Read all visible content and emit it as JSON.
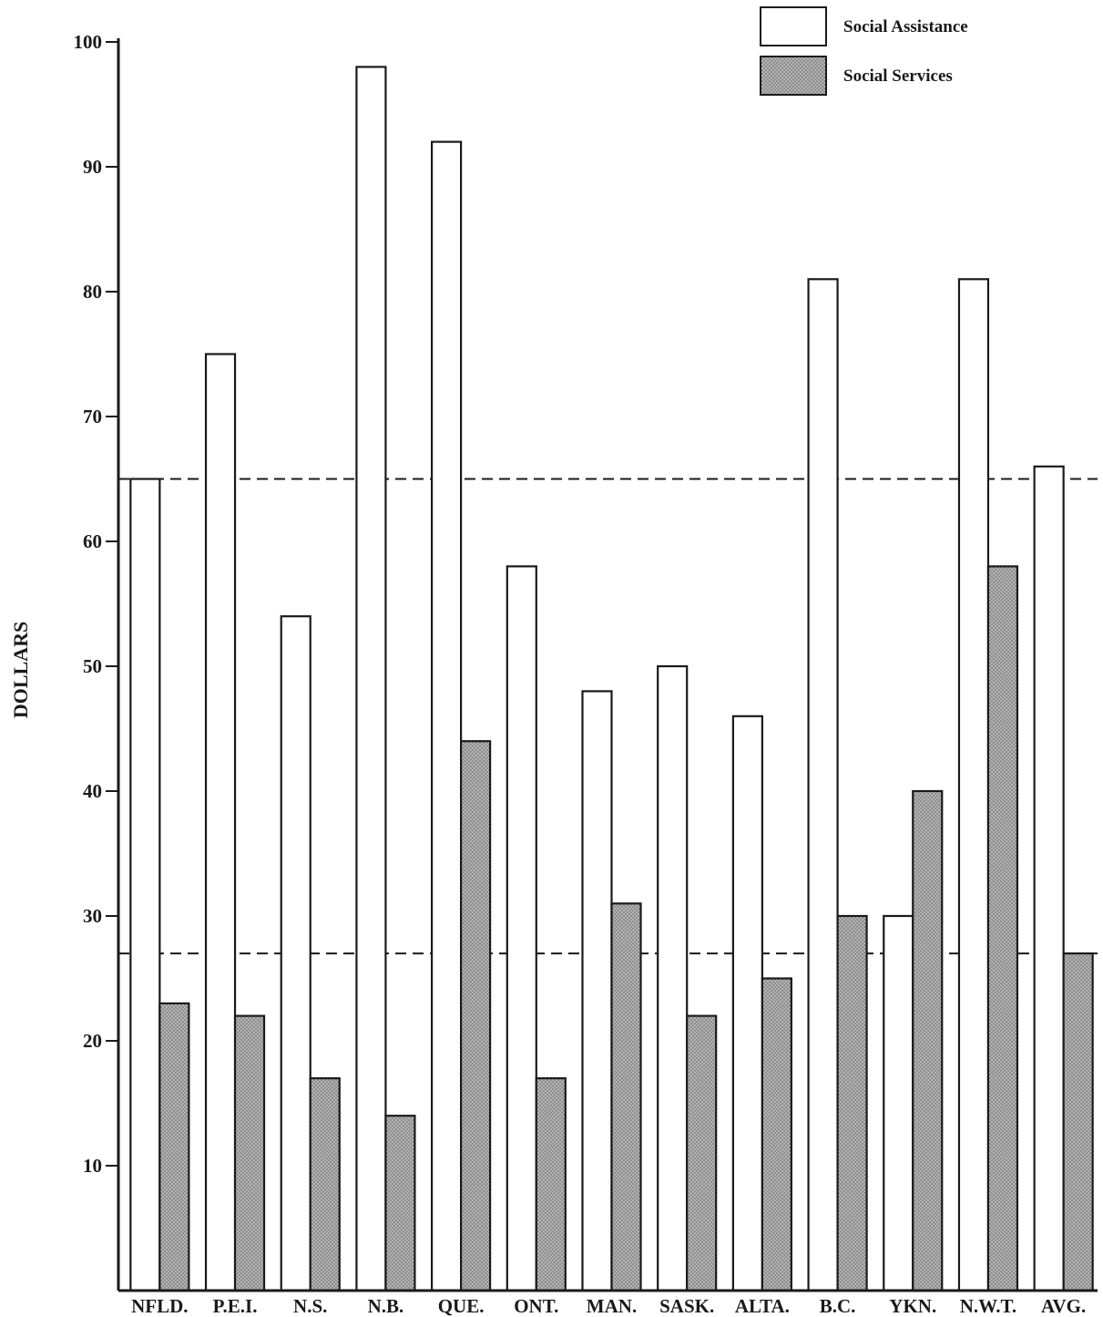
{
  "chart_data": {
    "type": "bar",
    "ylabel": "DOLLARS",
    "xlabel": "",
    "ylim": [
      0,
      100
    ],
    "yticks": [
      10,
      20,
      30,
      40,
      50,
      60,
      70,
      80,
      90,
      100
    ],
    "categories": [
      "NFLD.",
      "P.E.I.",
      "N.S.",
      "N.B.",
      "QUE.",
      "ONT.",
      "MAN.",
      "SASK.",
      "ALTA.",
      "B.C.",
      "YKN.",
      "N.W.T.",
      "AVG."
    ],
    "series": [
      {
        "name": "Social Assistance",
        "values": [
          65,
          75,
          54,
          98,
          92,
          58,
          48,
          50,
          46,
          81,
          30,
          81,
          66
        ]
      },
      {
        "name": "Social Services",
        "values": [
          23,
          22,
          17,
          14,
          44,
          17,
          31,
          22,
          25,
          30,
          40,
          58,
          27
        ]
      }
    ],
    "reference_lines": [
      65,
      27
    ],
    "legend_position": "top-right",
    "colors": {
      "social_assistance": "#ffffff",
      "social_services": "#9a9a9a",
      "ink": "#1a1a1a"
    }
  }
}
